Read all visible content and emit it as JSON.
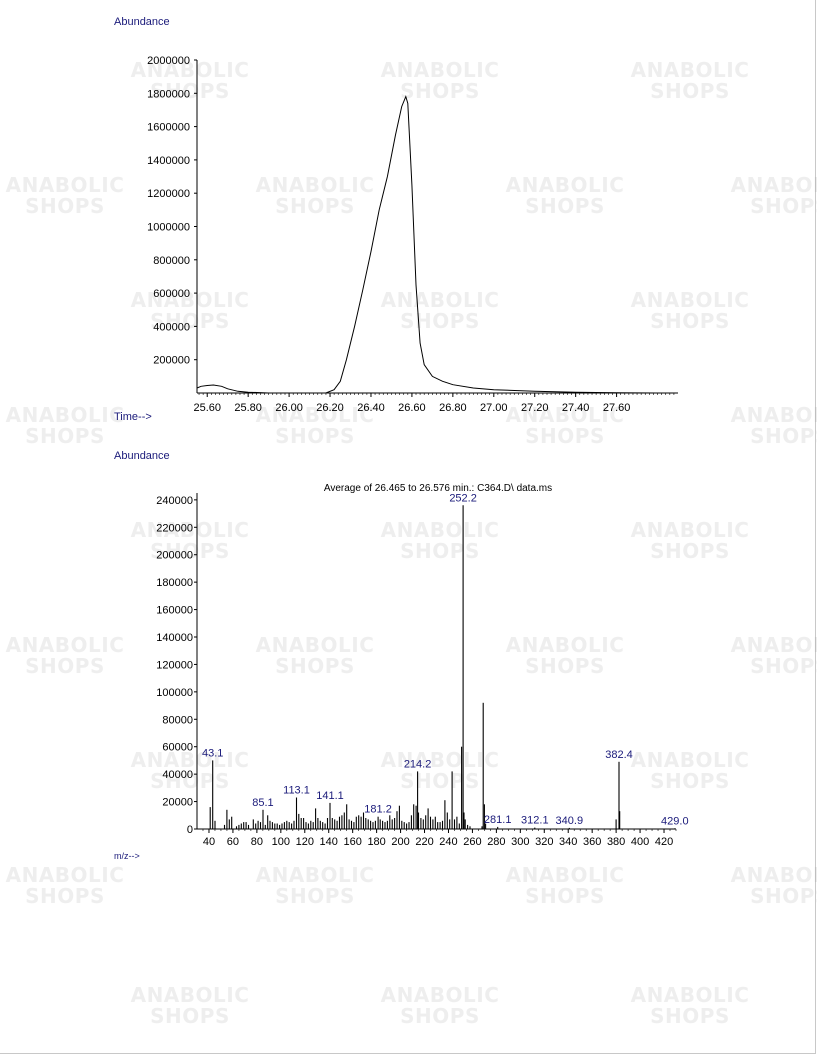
{
  "watermark": {
    "line1": "ANABOLIC",
    "line2": "SHOPS"
  },
  "chart_data": [
    {
      "type": "line",
      "ylabel": "Abundance",
      "xlabel": "Time-->",
      "xlim": [
        25.55,
        27.9
      ],
      "ylim": [
        0,
        2000000
      ],
      "x_ticks": [
        "25.60",
        "25.80",
        "26.00",
        "26.20",
        "26.40",
        "26.60",
        "26.80",
        "27.00",
        "27.20",
        "27.40",
        "27.60"
      ],
      "y_ticks": [
        "200000",
        "400000",
        "600000",
        "800000",
        "1000000",
        "1200000",
        "1400000",
        "1600000",
        "1800000",
        "2000000"
      ],
      "series": [
        {
          "x": [
            25.55,
            25.57,
            25.6,
            25.63,
            25.67,
            25.7,
            25.75,
            25.8,
            25.9,
            26.0,
            26.1,
            26.18,
            26.22,
            26.25,
            26.28,
            26.32,
            26.36,
            26.4,
            26.44,
            26.48,
            26.52,
            26.55,
            26.57,
            26.58,
            26.6,
            26.62,
            26.64,
            26.66,
            26.7,
            26.75,
            26.8,
            26.9,
            27.0,
            27.2,
            27.4,
            27.6,
            27.8,
            27.88
          ],
          "y": [
            30000,
            40000,
            45000,
            48000,
            40000,
            25000,
            10000,
            5000,
            0,
            0,
            0,
            0,
            20000,
            70000,
            200000,
            400000,
            620000,
            850000,
            1100000,
            1300000,
            1550000,
            1720000,
            1780000,
            1740000,
            1250000,
            650000,
            300000,
            170000,
            100000,
            70000,
            50000,
            30000,
            20000,
            10000,
            5000,
            2000,
            0,
            0
          ]
        }
      ]
    },
    {
      "type": "bar",
      "title": "Average of 26.465 to 26.576 min.: C364.D\\ data.ms",
      "ylabel": "Abundance",
      "xlabel": "m/z-->",
      "xlim": [
        30,
        430
      ],
      "ylim": [
        0,
        245000
      ],
      "x_ticks": [
        "40",
        "60",
        "80",
        "100",
        "120",
        "140",
        "160",
        "180",
        "200",
        "220",
        "240",
        "260",
        "280",
        "300",
        "320",
        "340",
        "360",
        "380",
        "400",
        "420"
      ],
      "y_ticks": [
        "0",
        "20000",
        "40000",
        "60000",
        "80000",
        "100000",
        "120000",
        "140000",
        "160000",
        "180000",
        "200000",
        "220000",
        "240000"
      ],
      "mz": [
        41,
        43.1,
        45,
        53,
        55,
        57,
        59,
        63,
        65,
        67,
        69,
        71,
        73,
        77,
        79,
        81,
        83,
        85.1,
        87,
        89,
        91,
        93,
        95,
        97,
        99,
        101,
        103,
        105,
        107,
        109,
        111,
        113.1,
        115,
        117,
        119,
        121,
        123,
        125,
        127,
        129,
        131,
        133,
        135,
        137,
        139,
        141.1,
        143,
        145,
        147,
        149,
        151,
        153,
        155,
        157,
        159,
        161,
        163,
        165,
        167,
        169,
        171,
        173,
        175,
        177,
        179,
        181.2,
        183,
        185,
        187,
        189,
        191,
        193,
        195,
        197,
        199,
        201,
        203,
        205,
        207,
        209,
        211,
        213,
        214.2,
        215,
        217,
        219,
        221,
        223,
        225,
        227,
        229,
        231,
        233,
        235,
        237,
        239,
        241,
        243,
        245,
        247,
        249,
        251,
        252.2,
        253,
        254,
        256,
        258,
        268,
        269,
        270,
        271,
        281.1,
        312.1,
        340.9,
        380,
        382.4,
        383,
        429.0
      ],
      "abundance": [
        16000,
        50000,
        6000,
        3000,
        14000,
        7000,
        9000,
        2000,
        3000,
        4000,
        5000,
        5000,
        3000,
        7000,
        4000,
        6000,
        5000,
        14000,
        3000,
        10000,
        6000,
        5000,
        4000,
        4000,
        3000,
        4000,
        5000,
        6000,
        5000,
        4000,
        6000,
        23000,
        11000,
        8000,
        8000,
        5000,
        4000,
        6000,
        5000,
        15000,
        8000,
        6000,
        5000,
        4000,
        8000,
        19000,
        8000,
        7000,
        6000,
        9000,
        10000,
        12000,
        18000,
        7000,
        6000,
        5000,
        9000,
        10000,
        9000,
        12000,
        8000,
        7000,
        6000,
        5000,
        6000,
        9000,
        7000,
        6000,
        5000,
        6000,
        10000,
        7000,
        8000,
        13000,
        17000,
        6000,
        5000,
        4000,
        5000,
        10000,
        18000,
        17000,
        42000,
        12000,
        8000,
        7000,
        10000,
        15000,
        9000,
        7000,
        9000,
        5000,
        5000,
        6000,
        21000,
        12000,
        7000,
        42000,
        7000,
        9000,
        4000,
        60000,
        236000,
        12000,
        7000,
        3000,
        2000,
        2000,
        92000,
        18000,
        4000,
        1500,
        1000,
        800,
        7000,
        49000,
        13000,
        500
      ],
      "labels": [
        {
          "mz": 43.1,
          "text": "43.1",
          "y": 50000
        },
        {
          "mz": 85.1,
          "text": "85.1",
          "y": 14000
        },
        {
          "mz": 113.1,
          "text": "113.1",
          "y": 23000
        },
        {
          "mz": 141.1,
          "text": "141.1",
          "y": 19000
        },
        {
          "mz": 181.2,
          "text": "181.2",
          "y": 9000
        },
        {
          "mz": 214.2,
          "text": "214.2",
          "y": 42000
        },
        {
          "mz": 252.2,
          "text": "252.2",
          "y": 236000
        },
        {
          "mz": 281.1,
          "text": "281.1",
          "y": 1500
        },
        {
          "mz": 312.1,
          "text": "312.1",
          "y": 1000
        },
        {
          "mz": 340.9,
          "text": "340.9",
          "y": 800
        },
        {
          "mz": 382.4,
          "text": "382.4",
          "y": 49000
        },
        {
          "mz": 429.0,
          "text": "429.0",
          "y": 500
        }
      ]
    }
  ]
}
